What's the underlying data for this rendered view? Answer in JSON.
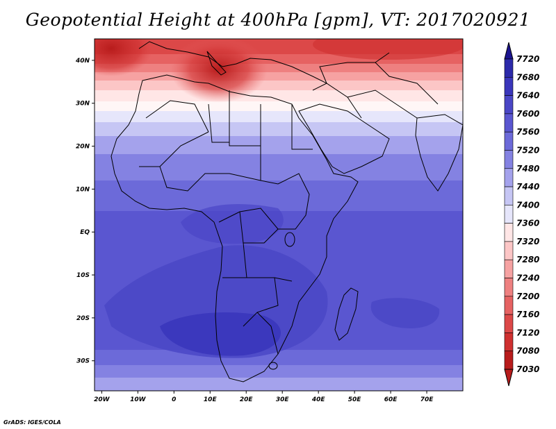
{
  "title": "Geopotential Height at 400hPa [gpm], VT: 2017020921",
  "credit": "GrADS: IGES/COLA",
  "map": {
    "lat_ticks": [
      "40N",
      "30N",
      "20N",
      "10N",
      "EQ",
      "10S",
      "20S",
      "30S"
    ],
    "lon_ticks": [
      "20W",
      "10W",
      "0",
      "10E",
      "20E",
      "30E",
      "40E",
      "50E",
      "60E",
      "70E"
    ],
    "lat_range": [
      -37,
      45
    ],
    "lon_range": [
      -22,
      80
    ]
  },
  "colorbar": {
    "levels": [
      7720,
      7680,
      7640,
      7600,
      7560,
      7520,
      7480,
      7440,
      7400,
      7360,
      7320,
      7280,
      7240,
      7200,
      7160,
      7120,
      7080,
      7030
    ],
    "colors": [
      "#1c1490",
      "#2c2aaa",
      "#3a36bb",
      "#4a46c6",
      "#5a56d0",
      "#6c6ad9",
      "#8482e2",
      "#a4a2ec",
      "#c6c6f4",
      "#e6e6fb",
      "#ffe6e6",
      "#fcc6c6",
      "#f6a2a2",
      "#ee8080",
      "#e66262",
      "#dc4848",
      "#cf3030",
      "#b81c1c"
    ]
  }
}
